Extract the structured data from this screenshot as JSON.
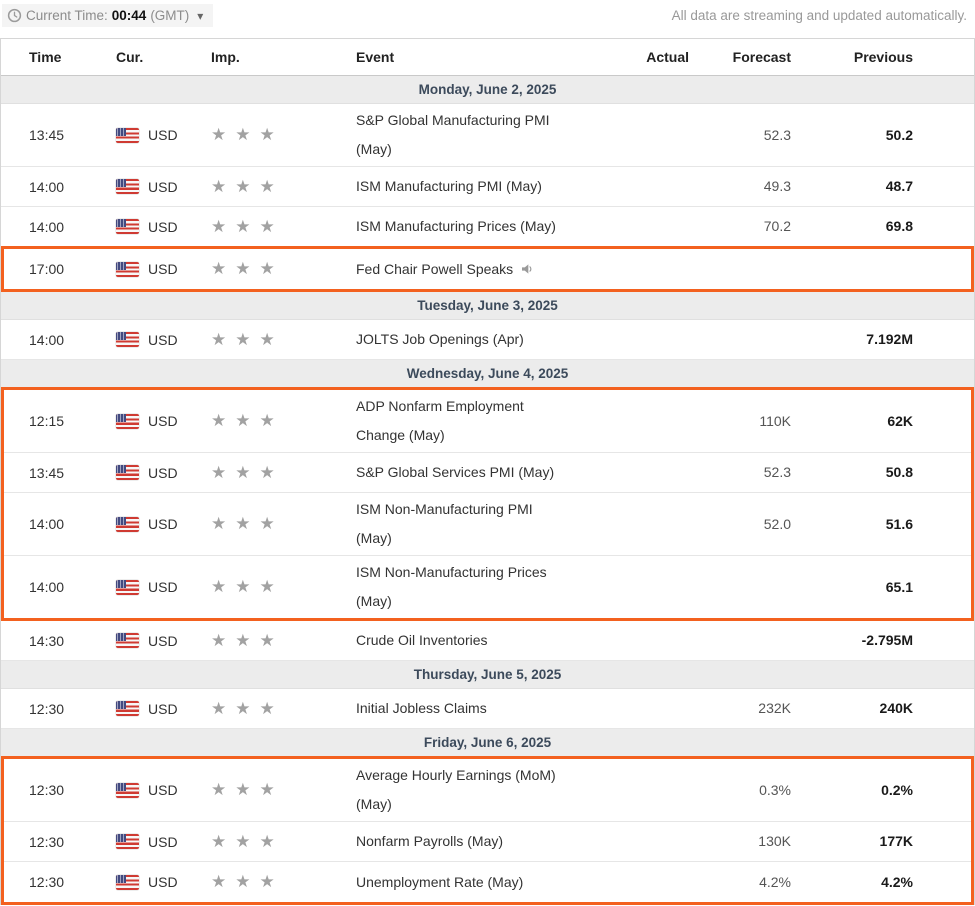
{
  "header": {
    "current_time_label": "Current Time:",
    "current_time_value": "00:44",
    "timezone": "(GMT)",
    "streaming_note": "All data are streaming and updated automatically."
  },
  "icons": {
    "chevron_down": "▾",
    "star": "★"
  },
  "colors": {
    "highlight": "#f3611f",
    "day_header_bg": "#ececec",
    "day_header_text": "#3c4a5b",
    "star": "#a2a2a2",
    "flag_red": "#cf3a32",
    "flag_blue": "#434a80"
  },
  "table": {
    "columns": {
      "time": "Time",
      "cur": "Cur.",
      "imp": "Imp.",
      "event": "Event",
      "actual": "Actual",
      "forecast": "Forecast",
      "previous": "Previous"
    }
  },
  "days": [
    {
      "label": "Monday, June 2, 2025",
      "rows": [
        {
          "time": "13:45",
          "currency": "USD",
          "importance": 3,
          "event": "S&P Global Manufacturing PMI\n(May)",
          "actual": "",
          "forecast": "52.3",
          "previous": "50.2",
          "highlighted": false,
          "speaker": false
        },
        {
          "time": "14:00",
          "currency": "USD",
          "importance": 3,
          "event": "ISM Manufacturing PMI (May)",
          "actual": "",
          "forecast": "49.3",
          "previous": "48.7",
          "highlighted": false,
          "speaker": false
        },
        {
          "time": "14:00",
          "currency": "USD",
          "importance": 3,
          "event": "ISM Manufacturing Prices (May)",
          "actual": "",
          "forecast": "70.2",
          "previous": "69.8",
          "highlighted": false,
          "speaker": false
        },
        {
          "time": "17:00",
          "currency": "USD",
          "importance": 3,
          "event": "Fed Chair Powell Speaks",
          "actual": "",
          "forecast": "",
          "previous": "",
          "highlighted": true,
          "speaker": true
        }
      ]
    },
    {
      "label": "Tuesday, June 3, 2025",
      "rows": [
        {
          "time": "14:00",
          "currency": "USD",
          "importance": 3,
          "event": "JOLTS Job Openings (Apr)",
          "actual": "",
          "forecast": "",
          "previous": "7.192M",
          "highlighted": false,
          "speaker": false
        }
      ]
    },
    {
      "label": "Wednesday, June 4, 2025",
      "rows": [
        {
          "time": "12:15",
          "currency": "USD",
          "importance": 3,
          "event": "ADP Nonfarm Employment\nChange (May)",
          "actual": "",
          "forecast": "110K",
          "previous": "62K",
          "highlighted": true,
          "speaker": false
        },
        {
          "time": "13:45",
          "currency": "USD",
          "importance": 3,
          "event": "S&P Global Services PMI (May)",
          "actual": "",
          "forecast": "52.3",
          "previous": "50.8",
          "highlighted": true,
          "speaker": false
        },
        {
          "time": "14:00",
          "currency": "USD",
          "importance": 3,
          "event": "ISM Non-Manufacturing PMI\n(May)",
          "actual": "",
          "forecast": "52.0",
          "previous": "51.6",
          "highlighted": true,
          "speaker": false
        },
        {
          "time": "14:00",
          "currency": "USD",
          "importance": 3,
          "event": "ISM Non-Manufacturing Prices\n(May)",
          "actual": "",
          "forecast": "",
          "previous": "65.1",
          "highlighted": true,
          "speaker": false
        },
        {
          "time": "14:30",
          "currency": "USD",
          "importance": 3,
          "event": "Crude Oil Inventories",
          "actual": "",
          "forecast": "",
          "previous": "-2.795M",
          "highlighted": false,
          "speaker": false
        }
      ]
    },
    {
      "label": "Thursday, June 5, 2025",
      "rows": [
        {
          "time": "12:30",
          "currency": "USD",
          "importance": 3,
          "event": "Initial Jobless Claims",
          "actual": "",
          "forecast": "232K",
          "previous": "240K",
          "highlighted": false,
          "speaker": false
        }
      ]
    },
    {
      "label": "Friday, June 6, 2025",
      "rows": [
        {
          "time": "12:30",
          "currency": "USD",
          "importance": 3,
          "event": "Average Hourly Earnings (MoM)\n(May)",
          "actual": "",
          "forecast": "0.3%",
          "previous": "0.2%",
          "highlighted": true,
          "speaker": false
        },
        {
          "time": "12:30",
          "currency": "USD",
          "importance": 3,
          "event": "Nonfarm Payrolls (May)",
          "actual": "",
          "forecast": "130K",
          "previous": "177K",
          "highlighted": true,
          "speaker": false
        },
        {
          "time": "12:30",
          "currency": "USD",
          "importance": 3,
          "event": "Unemployment Rate (May)",
          "actual": "",
          "forecast": "4.2%",
          "previous": "4.2%",
          "highlighted": true,
          "speaker": false
        }
      ]
    }
  ]
}
